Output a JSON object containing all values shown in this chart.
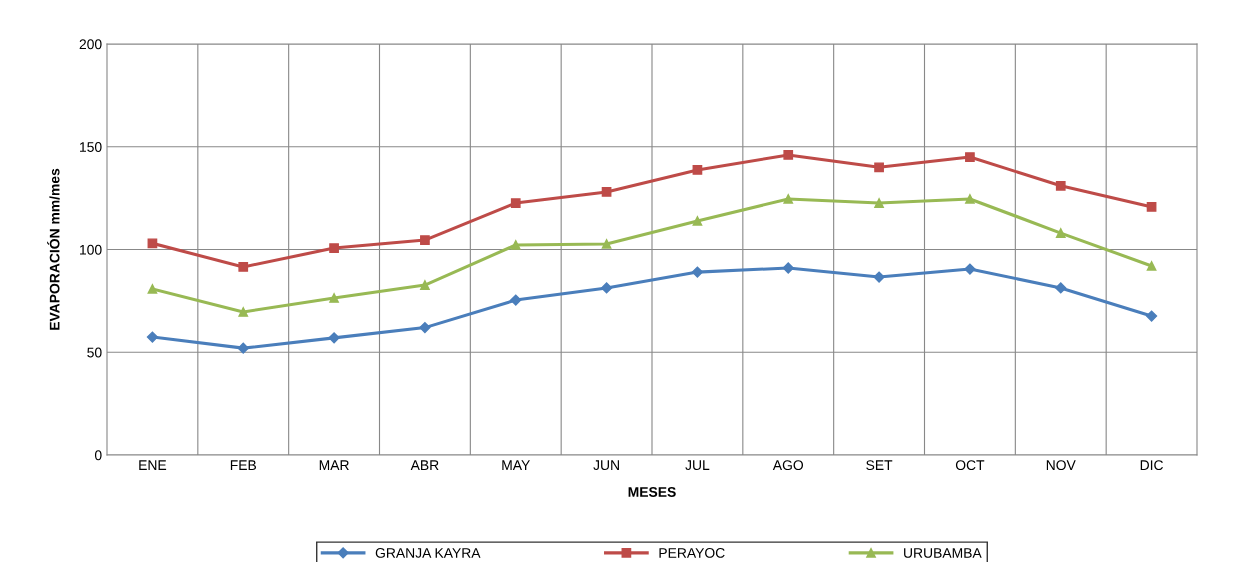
{
  "chart_data": {
    "type": "line",
    "xlabel": "MESES",
    "ylabel": "EVAPORACIÓN mm/mes",
    "categories": [
      "ENE",
      "FEB",
      "MAR",
      "ABR",
      "MAY",
      "JUN",
      "JUL",
      "AGO",
      "SET",
      "OCT",
      "NOV",
      "DIC"
    ],
    "series": [
      {
        "name": "GRANJA KAYRA",
        "color": "#4a7ebb",
        "marker": "diamond",
        "values": [
          57.4,
          52,
          57,
          62,
          75.4,
          81.3,
          89,
          91,
          86.6,
          90.5,
          81.3,
          67.6
        ]
      },
      {
        "name": "PERAYOC",
        "color": "#be4b48",
        "marker": "square",
        "values": [
          103,
          91.5,
          100.7,
          104.6,
          122.6,
          128,
          138.7,
          146,
          140,
          145,
          131,
          120.7
        ]
      },
      {
        "name": "URUBAMBA",
        "color": "#98b954",
        "marker": "triangle",
        "values": [
          80.8,
          69.6,
          76.4,
          82.7,
          102.2,
          102.7,
          113.9,
          124.6,
          122.6,
          124.6,
          108,
          92
        ]
      }
    ],
    "ylim": [
      0,
      200
    ],
    "yticks": [
      0,
      50,
      100,
      150,
      200
    ],
    "grid": true,
    "legend": "bottom",
    "line_style": "solid"
  }
}
